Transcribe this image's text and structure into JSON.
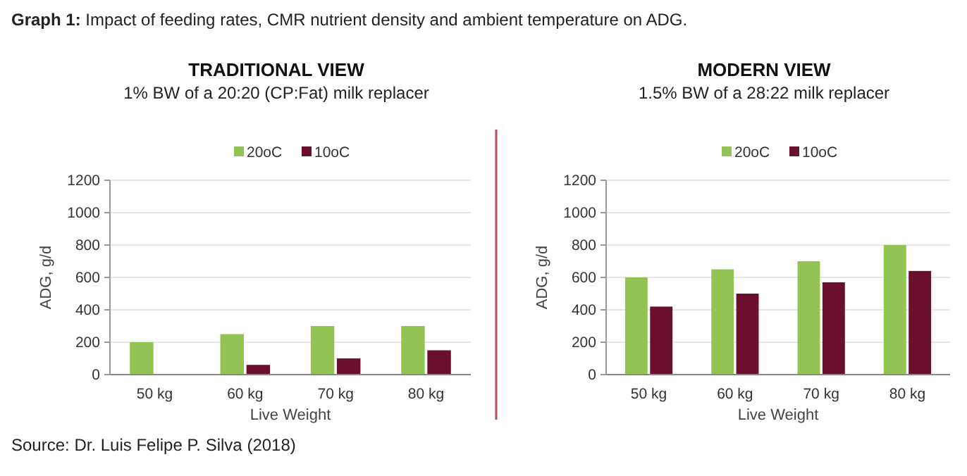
{
  "chart_data": [
    {
      "type": "bar",
      "title": "TRADITIONAL VIEW",
      "subtitle": "1% BW of a 20:20 (CP:Fat) milk replacer",
      "xlabel": "Live Weight",
      "ylabel": "ADG, g/d",
      "categories": [
        "50 kg",
        "60 kg",
        "70 kg",
        "80 kg"
      ],
      "series": [
        {
          "name": "20oC",
          "color": "#92c353",
          "values": [
            200,
            250,
            300,
            300
          ]
        },
        {
          "name": "10oC",
          "color": "#6b0f2f",
          "values": [
            null,
            60,
            100,
            150
          ]
        }
      ],
      "ylim": [
        0,
        1200
      ],
      "yticks": [
        0,
        200,
        400,
        600,
        800,
        1000,
        1200
      ],
      "grid": "y",
      "legend": "top",
      "annotations": [
        "Graph 1: Impact of feeding rates, CMR nutrient density and ambient temperature on ADG.",
        "Source: Dr. Luis Felipe P. Silva (2018)"
      ]
    },
    {
      "type": "bar",
      "title": "MODERN VIEW",
      "subtitle": "1.5% BW of a 28:22 milk replacer",
      "xlabel": "Live Weight",
      "ylabel": "ADG, g/d",
      "categories": [
        "50 kg",
        "60 kg",
        "70 kg",
        "80 kg"
      ],
      "series": [
        {
          "name": "20oC",
          "color": "#92c353",
          "values": [
            600,
            650,
            700,
            800
          ]
        },
        {
          "name": "10oC",
          "color": "#6b0f2f",
          "values": [
            420,
            500,
            570,
            640
          ]
        }
      ],
      "ylim": [
        0,
        1200
      ],
      "yticks": [
        0,
        200,
        400,
        600,
        800,
        1000,
        1200
      ],
      "grid": "y",
      "legend": "top"
    }
  ]
}
